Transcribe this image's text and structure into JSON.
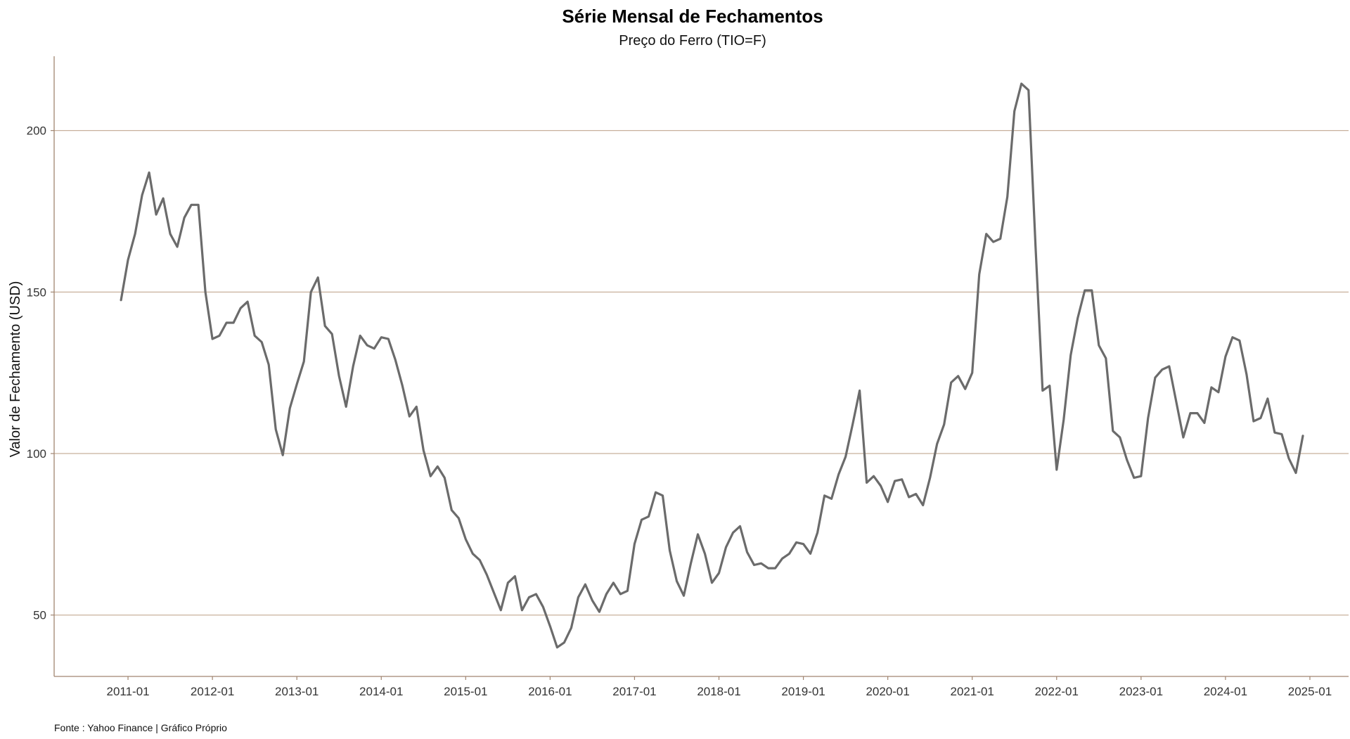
{
  "chart_data": {
    "type": "line",
    "title": "Série Mensal de Fechamentos",
    "subtitle": "Preço do Ferro (TIO=F)",
    "xlabel": "",
    "ylabel": "Valor de Fechamento (USD)",
    "caption": "Fonte : Yahoo Finance | Gráfico Próprio",
    "x_start": "2010-12",
    "x_step": "1 month",
    "xlim_months_from_2011_01": [
      -10.5,
      173.5
    ],
    "ylim": [
      31,
      223
    ],
    "yticks": [
      50,
      100,
      150,
      200
    ],
    "xticks": [
      {
        "label": "2011-01",
        "month_index": 0
      },
      {
        "label": "2012-01",
        "month_index": 12
      },
      {
        "label": "2013-01",
        "month_index": 24
      },
      {
        "label": "2014-01",
        "month_index": 36
      },
      {
        "label": "2015-01",
        "month_index": 48
      },
      {
        "label": "2016-01",
        "month_index": 60
      },
      {
        "label": "2017-01",
        "month_index": 72
      },
      {
        "label": "2018-01",
        "month_index": 84
      },
      {
        "label": "2019-01",
        "month_index": 96
      },
      {
        "label": "2020-01",
        "month_index": 108
      },
      {
        "label": "2021-01",
        "month_index": 120
      },
      {
        "label": "2022-01",
        "month_index": 132
      },
      {
        "label": "2023-01",
        "month_index": 144
      },
      {
        "label": "2024-01",
        "month_index": 156
      },
      {
        "label": "2025-01",
        "month_index": 168
      }
    ],
    "grid": "horizontal",
    "line_color": "#6b6b6b",
    "grid_color": "#c8b09c",
    "axis_color": "#a08570",
    "series": [
      {
        "name": "TIO=F",
        "values": [
          147.5,
          160,
          168,
          180,
          187,
          174,
          179,
          168,
          164,
          173,
          177,
          177,
          150,
          135.5,
          136.5,
          140.5,
          140.5,
          145,
          147,
          136.5,
          134.5,
          127.5,
          107.5,
          99.5,
          114,
          121.5,
          128.5,
          150,
          154.5,
          139.5,
          137,
          124,
          114.5,
          127,
          136.5,
          133.5,
          132.5,
          136,
          135.5,
          129,
          121,
          111.5,
          114.5,
          101,
          93,
          96,
          92.5,
          82.5,
          80,
          73.5,
          69,
          67,
          62.5,
          57,
          51.5,
          60,
          62,
          51.5,
          55.5,
          56.5,
          52.5,
          46.5,
          40,
          41.5,
          46,
          55.5,
          59.5,
          54.5,
          51,
          56.5,
          60,
          56.5,
          57.5,
          72,
          79.5,
          80.5,
          88,
          87,
          70,
          60.5,
          56,
          66,
          75,
          69,
          60,
          63,
          71,
          75.5,
          77.5,
          69.5,
          65.5,
          66,
          64.5,
          64.5,
          67.5,
          69,
          72.5,
          72,
          69,
          75.5,
          87,
          86,
          93.5,
          99,
          109,
          119.5,
          91,
          93,
          90,
          85,
          91.5,
          92,
          86.5,
          87.5,
          84,
          92.5,
          103,
          109,
          122,
          124,
          120,
          125,
          155.5,
          168,
          165.5,
          166.5,
          179.5,
          206,
          214.5,
          212.5,
          164,
          119.5,
          121,
          95,
          110.5,
          130.5,
          142,
          150.5,
          150.5,
          133.5,
          129.5,
          107,
          105,
          98,
          92.5,
          93,
          111,
          123.5,
          126,
          127,
          116,
          105,
          112.5,
          112.5,
          109.5,
          120.5,
          119,
          130,
          136,
          135,
          124.5,
          110,
          111,
          117,
          106.5,
          106,
          98.5,
          94,
          105.5
        ]
      }
    ]
  }
}
